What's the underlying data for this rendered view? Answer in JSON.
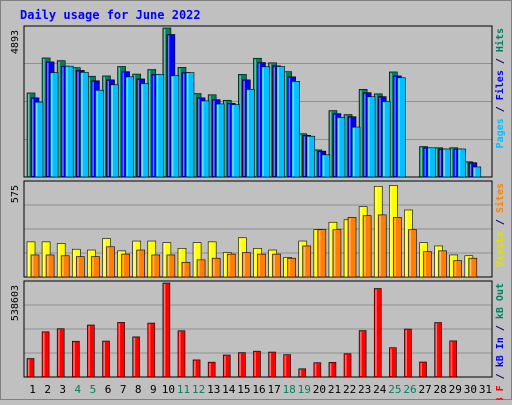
{
  "chart_data": {
    "type": "bar",
    "title": "Daily usage for June 2022",
    "categories": [
      "1",
      "2",
      "3",
      "4",
      "5",
      "6",
      "7",
      "8",
      "9",
      "10",
      "11",
      "12",
      "13",
      "14",
      "15",
      "16",
      "17",
      "18",
      "19",
      "20",
      "21",
      "22",
      "23",
      "24",
      "25",
      "26",
      "27",
      "28",
      "29",
      "30",
      "31"
    ],
    "weekend_days": [
      "4",
      "5",
      "11",
      "12",
      "18",
      "19",
      "25",
      "26"
    ],
    "panels": [
      {
        "name": "hits-files-pages",
        "max_label": "4893",
        "ylim": [
          0,
          4893
        ],
        "side_label": [
          {
            "text": "Pages",
            "color": "#00c0ff"
          },
          {
            "text": " / ",
            "color": "#000080"
          },
          {
            "text": "Files",
            "color": "#0000ff"
          },
          {
            "text": " / ",
            "color": "#000080"
          },
          {
            "text": "Hits",
            "color": "#008060"
          }
        ],
        "series": [
          {
            "name": "Hits",
            "color": "#008060",
            "values": [
              2760,
              3910,
              3820,
              3590,
              3310,
              3320,
              3630,
              3380,
              3530,
              4893,
              3600,
              2740,
              2700,
              2520,
              3370,
              3900,
              3750,
              3460,
              1420,
              890,
              2180,
              2050,
              2880,
              2730,
              3450,
              0,
              1000,
              960,
              960,
              500,
              0
            ]
          },
          {
            "name": "Files",
            "color": "#0000ff",
            "values": [
              2600,
              3780,
              3640,
              3500,
              3160,
              3190,
              3460,
              3220,
              3370,
              4680,
              3430,
              2600,
              2540,
              2420,
              3190,
              3760,
              3650,
              3290,
              1370,
              850,
              2080,
              1980,
              2770,
              2640,
              3320,
              0,
              960,
              920,
              920,
              470,
              0
            ]
          },
          {
            "name": "Pages",
            "color": "#00c0ff",
            "values": [
              2460,
              3430,
              3640,
              3440,
              2850,
              3030,
              3290,
              3070,
              3370,
              3330,
              3430,
              2500,
              2400,
              2380,
              2880,
              3620,
              3630,
              3140,
              1340,
              730,
              1960,
              1640,
              2640,
              2480,
              3260,
              0,
              960,
              920,
              920,
              330,
              0
            ]
          }
        ]
      },
      {
        "name": "visits-sites",
        "max_label": "575",
        "ylim": [
          0,
          575
        ],
        "side_label": [
          {
            "text": "Visits",
            "color": "#e0e000"
          },
          {
            "text": " / ",
            "color": "#000080"
          },
          {
            "text": "Sites",
            "color": "#ff8000"
          }
        ],
        "series": [
          {
            "name": "Visits",
            "color": "#ffff00",
            "values": [
              215,
              215,
              205,
              170,
              165,
              235,
              160,
              220,
              220,
              210,
              175,
              210,
              215,
              150,
              240,
              175,
              165,
              120,
              220,
              290,
              335,
              350,
              430,
              555,
              560,
              410,
              210,
              190,
              135,
              130,
              0
            ]
          },
          {
            "name": "Sites",
            "color": "#ff8000",
            "values": [
              135,
              135,
              130,
              125,
              125,
              185,
              140,
              165,
              135,
              135,
              90,
              105,
              115,
              140,
              150,
              140,
              140,
              115,
              190,
              290,
              290,
              365,
              375,
              380,
              365,
              290,
              155,
              160,
              100,
              115,
              0
            ]
          }
        ]
      },
      {
        "name": "kbin-kbout-kbf",
        "max_label": "538603",
        "ylim": [
          0,
          538603
        ],
        "side_label": [
          {
            "text": "kB F",
            "color": "#ff0000"
          },
          {
            "text": " / ",
            "color": "#000080"
          },
          {
            "text": "kB In",
            "color": "#0000ff"
          },
          {
            "text": " / ",
            "color": "#000080"
          },
          {
            "text": "kB Out",
            "color": "#008060"
          }
        ],
        "series": [
          {
            "name": "kB F",
            "color": "#ff0000",
            "values": [
              106000,
              259000,
              277000,
              205000,
              298000,
              206000,
              313000,
              230000,
              309000,
              538603,
              265000,
              98000,
              85000,
              126000,
              140000,
              148000,
              143000,
              128000,
              47000,
              82000,
              84000,
              133000,
              266000,
              507000,
              168000,
              275000,
              86000,
              312000,
              207000,
              0,
              0
            ]
          }
        ]
      }
    ]
  }
}
